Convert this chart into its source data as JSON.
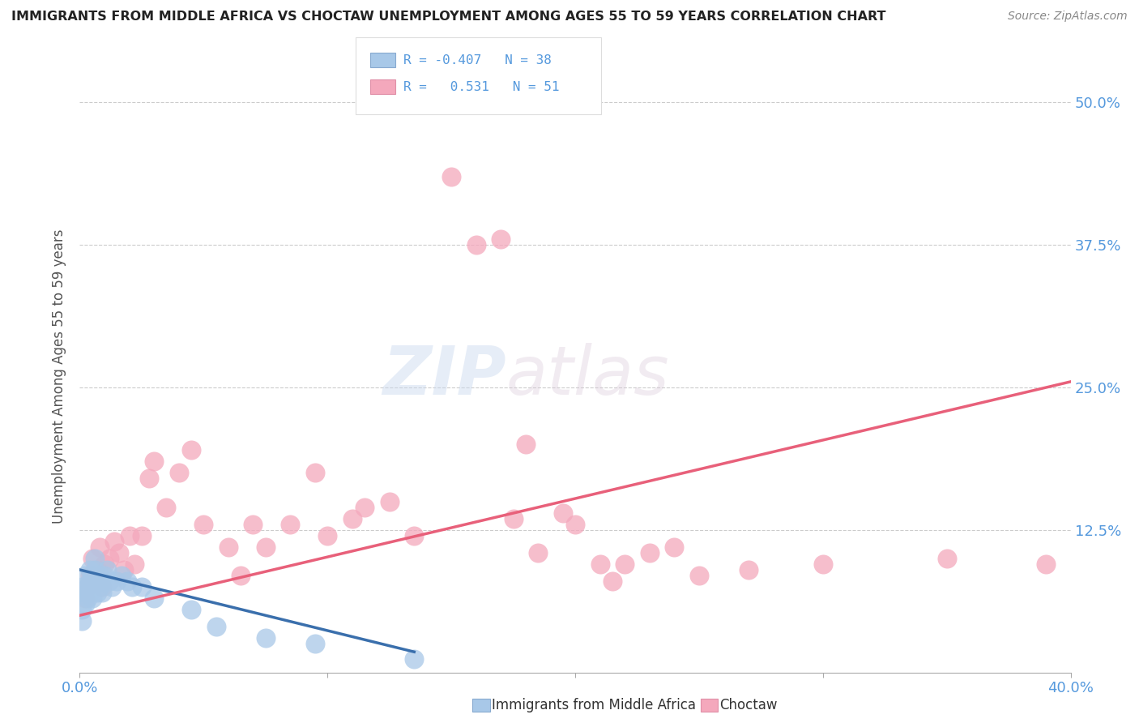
{
  "title": "IMMIGRANTS FROM MIDDLE AFRICA VS CHOCTAW UNEMPLOYMENT AMONG AGES 55 TO 59 YEARS CORRELATION CHART",
  "source": "Source: ZipAtlas.com",
  "ylabel": "Unemployment Among Ages 55 to 59 years",
  "watermark_zip": "ZIP",
  "watermark_atlas": "atlas",
  "legend_line1": "R = -0.407   N = 38",
  "legend_line2": "R =   0.531   N = 51",
  "blue_color": "#a8c8e8",
  "pink_color": "#f4a8bc",
  "blue_line_color": "#3a6fac",
  "pink_line_color": "#e8607a",
  "axis_label_color": "#5599dd",
  "title_color": "#222222",
  "source_color": "#888888",
  "background_color": "#ffffff",
  "grid_color": "#cccccc",
  "blue_scatter_x": [
    0.001,
    0.001,
    0.001,
    0.002,
    0.002,
    0.002,
    0.003,
    0.003,
    0.003,
    0.004,
    0.004,
    0.004,
    0.005,
    0.005,
    0.005,
    0.006,
    0.006,
    0.007,
    0.007,
    0.008,
    0.008,
    0.009,
    0.009,
    0.01,
    0.011,
    0.012,
    0.013,
    0.015,
    0.017,
    0.019,
    0.021,
    0.025,
    0.03,
    0.045,
    0.055,
    0.075,
    0.095,
    0.135
  ],
  "blue_scatter_y": [
    0.045,
    0.055,
    0.075,
    0.06,
    0.07,
    0.085,
    0.065,
    0.075,
    0.07,
    0.08,
    0.07,
    0.09,
    0.075,
    0.085,
    0.065,
    0.09,
    0.1,
    0.08,
    0.07,
    0.085,
    0.075,
    0.08,
    0.07,
    0.085,
    0.09,
    0.08,
    0.075,
    0.08,
    0.085,
    0.08,
    0.075,
    0.075,
    0.065,
    0.055,
    0.04,
    0.03,
    0.025,
    0.012
  ],
  "pink_scatter_x": [
    0.002,
    0.003,
    0.004,
    0.005,
    0.006,
    0.007,
    0.008,
    0.009,
    0.01,
    0.012,
    0.014,
    0.016,
    0.018,
    0.02,
    0.022,
    0.025,
    0.028,
    0.03,
    0.035,
    0.04,
    0.045,
    0.05,
    0.06,
    0.065,
    0.07,
    0.075,
    0.085,
    0.095,
    0.1,
    0.11,
    0.115,
    0.125,
    0.135,
    0.15,
    0.16,
    0.17,
    0.175,
    0.18,
    0.185,
    0.195,
    0.2,
    0.21,
    0.215,
    0.22,
    0.23,
    0.24,
    0.25,
    0.27,
    0.3,
    0.35,
    0.39
  ],
  "pink_scatter_y": [
    0.065,
    0.075,
    0.085,
    0.1,
    0.08,
    0.09,
    0.11,
    0.075,
    0.095,
    0.1,
    0.115,
    0.105,
    0.09,
    0.12,
    0.095,
    0.12,
    0.17,
    0.185,
    0.145,
    0.175,
    0.195,
    0.13,
    0.11,
    0.085,
    0.13,
    0.11,
    0.13,
    0.175,
    0.12,
    0.135,
    0.145,
    0.15,
    0.12,
    0.435,
    0.375,
    0.38,
    0.135,
    0.2,
    0.105,
    0.14,
    0.13,
    0.095,
    0.08,
    0.095,
    0.105,
    0.11,
    0.085,
    0.09,
    0.095,
    0.1,
    0.095
  ],
  "xlim": [
    0.0,
    0.4
  ],
  "ylim": [
    0.0,
    0.52
  ],
  "xtick_positions": [
    0.0,
    0.1,
    0.2,
    0.3,
    0.4
  ],
  "ytick_positions": [
    0.0,
    0.125,
    0.25,
    0.375,
    0.5
  ],
  "ytick_labels_right": [
    "",
    "12.5%",
    "25.0%",
    "37.5%",
    "50.0%"
  ],
  "blue_trend": [
    0.0,
    0.09,
    0.135,
    0.018
  ],
  "pink_trend": [
    0.0,
    0.05,
    0.4,
    0.255
  ]
}
